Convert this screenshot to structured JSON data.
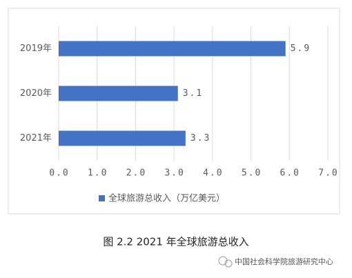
{
  "chart_data": {
    "type": "bar",
    "orientation": "horizontal",
    "categories": [
      "2019年",
      "2020年",
      "2021年"
    ],
    "series": [
      {
        "name": "全球旅游总收入（万亿美元）",
        "color": "#4472c4",
        "values": [
          5.9,
          3.1,
          3.3
        ]
      }
    ],
    "xlim": [
      0,
      7
    ],
    "xticks": [
      {
        "value": 0,
        "label": "0.0"
      },
      {
        "value": 1,
        "label": "1.0"
      },
      {
        "value": 2,
        "label": "2.0"
      },
      {
        "value": 3,
        "label": "3.0"
      },
      {
        "value": 4,
        "label": "4.0"
      },
      {
        "value": 5,
        "label": "5.0"
      },
      {
        "value": 6,
        "label": "6.0"
      },
      {
        "value": 7,
        "label": "7.0"
      }
    ],
    "grid": true,
    "legend": "bottom"
  },
  "caption": "图 2.2   2021 年全球旅游总收入",
  "watermark": "中国社会科学院旅游研究中心"
}
